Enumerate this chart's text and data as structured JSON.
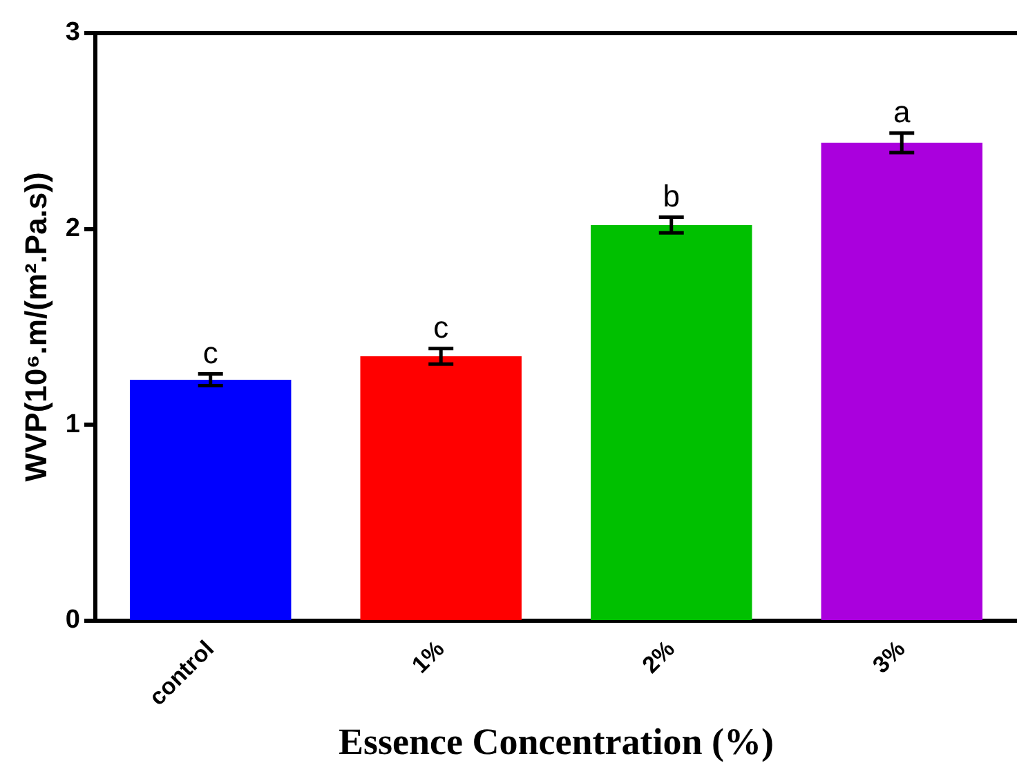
{
  "chart_data": {
    "type": "bar",
    "xlabel": "Essence Concentration (%)",
    "ylabel": "WVP(10⁶.m/(m².Pa.s))",
    "categories": [
      "control",
      "1%",
      "2%",
      "3%"
    ],
    "values": [
      1.23,
      1.35,
      2.02,
      2.44
    ],
    "errors": [
      0.03,
      0.04,
      0.04,
      0.05
    ],
    "colors": [
      "#0000ff",
      "#ff0000",
      "#00c000",
      "#aa00dd"
    ],
    "ylim": [
      0,
      3
    ],
    "yticks": [
      0,
      1,
      2,
      3
    ],
    "grid": false,
    "legend": false,
    "annotations": [
      {
        "text": "c",
        "x": "control",
        "y": 1.26
      },
      {
        "text": "c",
        "x": "1%",
        "y": 1.39
      },
      {
        "text": "b",
        "x": "2%",
        "y": 2.06
      },
      {
        "text": "a",
        "x": "3%",
        "y": 2.49
      }
    ]
  }
}
